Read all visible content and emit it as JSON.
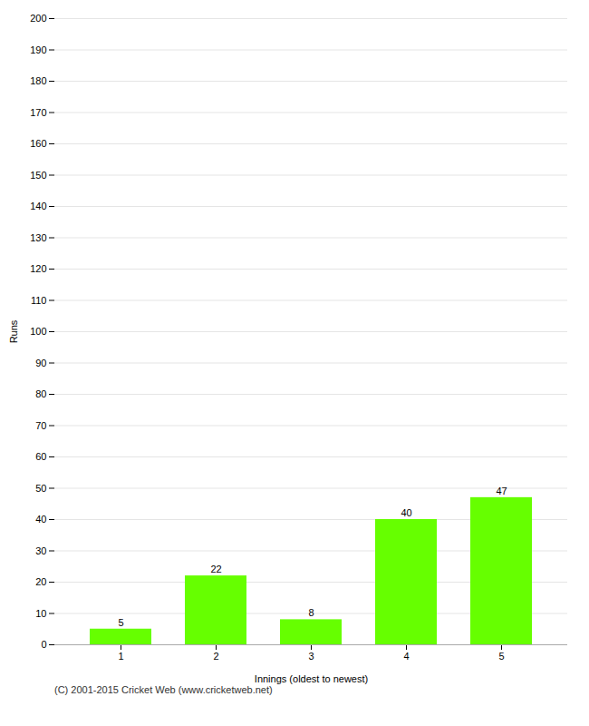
{
  "chart_data": {
    "type": "bar",
    "categories": [
      "1",
      "2",
      "3",
      "4",
      "5"
    ],
    "values": [
      5,
      22,
      8,
      40,
      47
    ],
    "color": "#66ff00",
    "xlabel": "Innings (oldest to newest)",
    "ylabel": "Runs",
    "ylim": [
      0,
      200
    ],
    "yticks": [
      0,
      10,
      20,
      30,
      40,
      50,
      60,
      70,
      80,
      90,
      100,
      110,
      120,
      130,
      140,
      150,
      160,
      170,
      180,
      190,
      200
    ],
    "grid": true,
    "data_labels": true,
    "caption": "(C) 2001-2015 Cricket Web (www.cricketweb.net)"
  }
}
